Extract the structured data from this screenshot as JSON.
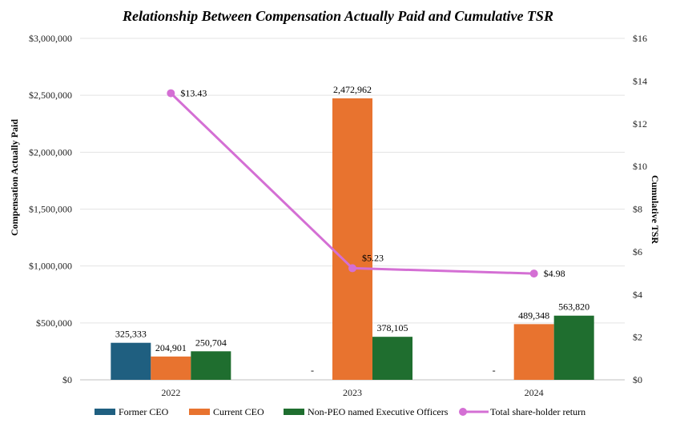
{
  "chart_data": {
    "type": "bar",
    "title": "Relationship Between Compensation Actually Paid and Cumulative TSR",
    "ylabel": "Compensation  Actually Paid",
    "y2label": "Cumulative  TSR",
    "xlabel": "",
    "categories": [
      "2022",
      "2023",
      "2024"
    ],
    "ylim": [
      0,
      3000000
    ],
    "y2lim": [
      0,
      16
    ],
    "y_ticks": [
      "$0",
      "$500,000",
      "$1,000,000",
      "$1,500,000",
      "$2,000,000",
      "$2,500,000",
      "$3,000,000"
    ],
    "y2_ticks": [
      "$0",
      "$2",
      "$4",
      "$6",
      "$8",
      "$10",
      "$12",
      "$14",
      "$16"
    ],
    "grid": true,
    "legend_position": "bottom",
    "series": [
      {
        "name": "Former CEO",
        "color": "#1f5f80",
        "values": [
          325333,
          null,
          null
        ],
        "labels": [
          "325,333",
          "-",
          "-"
        ]
      },
      {
        "name": "Current CEO",
        "color": "#e8732f",
        "values": [
          204901,
          2472962,
          489348
        ],
        "labels": [
          "204,901",
          "2,472,962",
          "489,348"
        ]
      },
      {
        "name": "Non-PEO named Executive Officers",
        "color": "#1f6e2f",
        "values": [
          250704,
          378105,
          563820
        ],
        "labels": [
          "250,704",
          "378,105",
          "563,820"
        ]
      }
    ],
    "line_series": {
      "name": "Total share-holder return",
      "color": "#d46fd4",
      "axis": "secondary",
      "values": [
        13.43,
        5.23,
        4.98
      ],
      "labels": [
        "$13.43",
        "$5.23",
        "$4.98"
      ]
    }
  }
}
